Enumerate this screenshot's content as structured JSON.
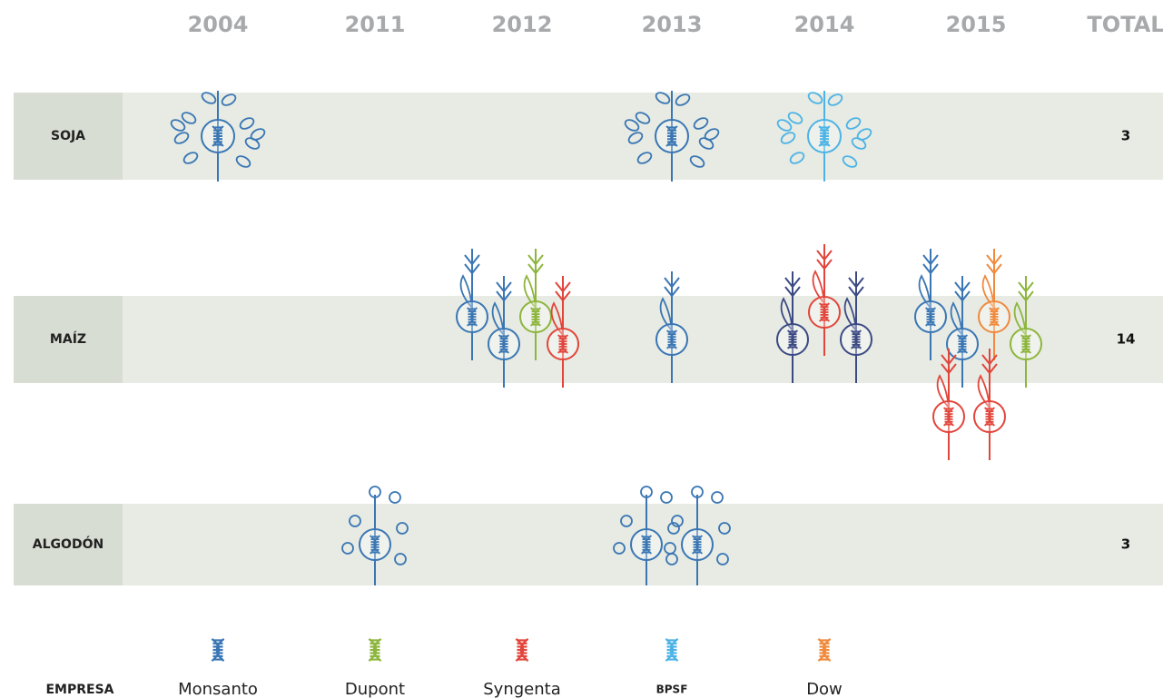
{
  "header": {
    "years": [
      "2004",
      "2011",
      "2012",
      "2013",
      "2014",
      "2015"
    ],
    "total": "TOTAL"
  },
  "rows": [
    {
      "label": "SOJA",
      "crop": "soja",
      "total": 3,
      "plants": [
        {
          "year": "2004",
          "company": "Monsanto"
        },
        {
          "year": "2013",
          "company": "Monsanto"
        },
        {
          "year": "2014",
          "company": "BPSF"
        }
      ]
    },
    {
      "label": "MAÍZ",
      "crop": "maiz",
      "total": 14,
      "plants": [
        {
          "year": "2012",
          "company": "Monsanto"
        },
        {
          "year": "2012",
          "company": "Monsanto"
        },
        {
          "year": "2012",
          "company": "Dupont"
        },
        {
          "year": "2012",
          "company": "Syngenta"
        },
        {
          "year": "2013",
          "company": "Monsanto"
        },
        {
          "year": "2014",
          "company": "Monsanto",
          "color": "#3c4a84"
        },
        {
          "year": "2014",
          "company": "Syngenta"
        },
        {
          "year": "2014",
          "company": "Monsanto",
          "color": "#3c4a84"
        },
        {
          "year": "2015",
          "company": "Monsanto"
        },
        {
          "year": "2015",
          "company": "Monsanto"
        },
        {
          "year": "2015",
          "company": "Dow"
        },
        {
          "year": "2015",
          "company": "Dupont"
        },
        {
          "year": "2015",
          "company": "Syngenta"
        },
        {
          "year": "2015",
          "company": "Syngenta"
        }
      ]
    },
    {
      "label": "ALGODÓN",
      "crop": "algodon",
      "total": 3,
      "plants": [
        {
          "year": "2011",
          "company": "Monsanto"
        },
        {
          "year": "2013",
          "company": "Monsanto"
        },
        {
          "year": "2013",
          "company": "Monsanto"
        }
      ]
    }
  ],
  "legend": {
    "title": "EMPRESA",
    "companies": [
      {
        "name": "Monsanto",
        "color": "#3a76b4"
      },
      {
        "name": "Dupont",
        "color": "#8db53c"
      },
      {
        "name": "Syngenta",
        "color": "#e2453b"
      },
      {
        "name": "BPSF",
        "color": "#4db3e6"
      },
      {
        "name": "Dow",
        "color": "#f08a3c"
      }
    ]
  }
}
